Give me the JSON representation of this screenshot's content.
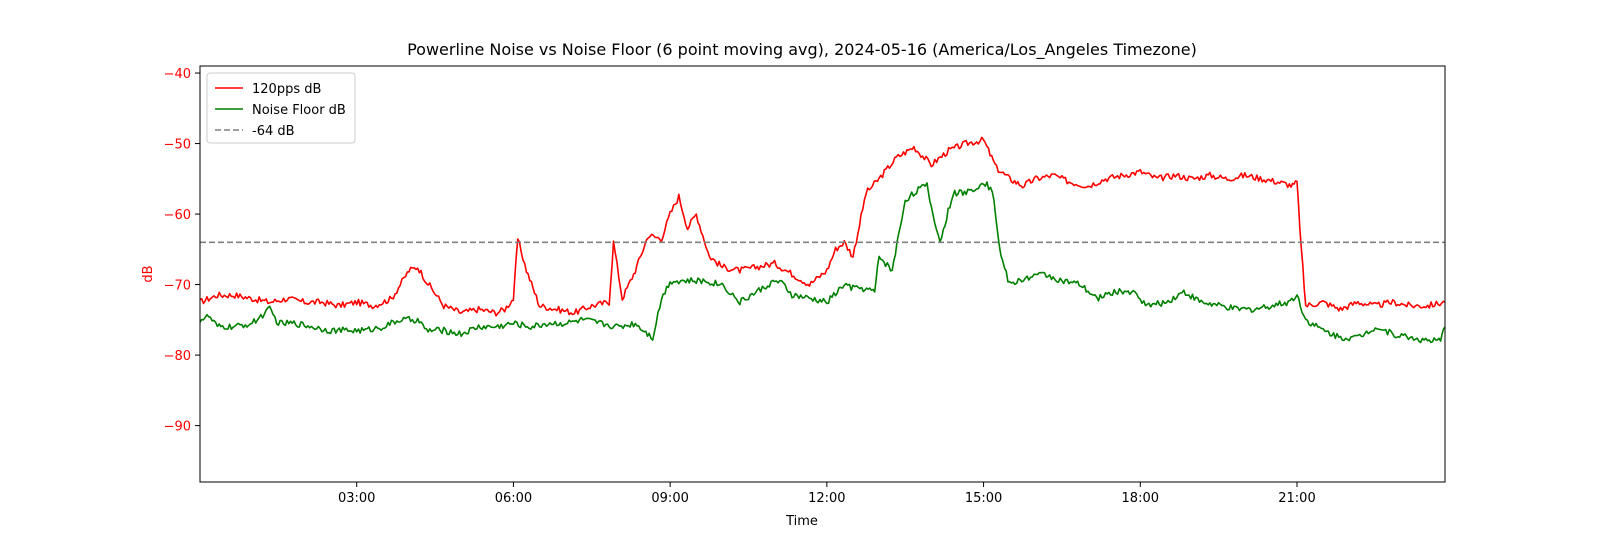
{
  "chart_data": {
    "type": "line",
    "title": "Powerline Noise vs Noise Floor (6 point moving avg), 2024-05-16 (America/Los_Angeles Timezone)",
    "xlabel": "Time",
    "ylabel": "dB",
    "xlim": [
      "00:00",
      "23:50"
    ],
    "ylim": [
      -98,
      -39
    ],
    "x_ticks": [
      "03:00",
      "06:00",
      "09:00",
      "12:00",
      "15:00",
      "18:00",
      "21:00"
    ],
    "y_ticks": [
      -90,
      -80,
      -70,
      -60,
      -50,
      -40
    ],
    "grid": false,
    "legend_position": "top-left",
    "colors": {
      "ylabel": "#ff0000",
      "y_ticks": "#ff0000"
    },
    "series": [
      {
        "name": "120pps dB",
        "color": "#ff0000",
        "style": "solid",
        "x": [
          "00:00",
          "00:20",
          "00:40",
          "01:00",
          "01:20",
          "01:40",
          "02:00",
          "02:20",
          "02:40",
          "03:00",
          "03:20",
          "03:40",
          "04:00",
          "04:10",
          "04:20",
          "04:40",
          "05:00",
          "05:20",
          "05:40",
          "05:50",
          "06:00",
          "06:05",
          "06:15",
          "06:30",
          "06:50",
          "07:10",
          "07:30",
          "07:50",
          "07:55",
          "08:05",
          "08:20",
          "08:35",
          "08:50",
          "09:00",
          "09:10",
          "09:20",
          "09:30",
          "09:45",
          "10:00",
          "10:20",
          "10:40",
          "11:00",
          "11:20",
          "11:40",
          "12:00",
          "12:10",
          "12:20",
          "12:30",
          "12:45",
          "13:00",
          "13:20",
          "13:40",
          "14:00",
          "14:20",
          "14:40",
          "15:00",
          "15:15",
          "15:30",
          "15:45",
          "16:00",
          "16:20",
          "16:40",
          "17:00",
          "17:20",
          "17:40",
          "18:00",
          "18:20",
          "18:40",
          "19:00",
          "19:20",
          "19:40",
          "20:00",
          "20:20",
          "20:40",
          "20:55",
          "21:00",
          "21:05",
          "21:10",
          "21:30",
          "21:50",
          "22:10",
          "22:30",
          "22:50",
          "23:10",
          "23:30",
          "23:50"
        ],
        "y": [
          -72.5,
          -71.5,
          -71.5,
          -72.0,
          -72.5,
          -72.0,
          -72.5,
          -72.5,
          -73.0,
          -72.5,
          -73.0,
          -72.0,
          -68.0,
          -67.5,
          -69.5,
          -73.0,
          -74.0,
          -73.5,
          -74.0,
          -73.5,
          -72.0,
          -63.5,
          -68.0,
          -73.0,
          -73.5,
          -74.0,
          -73.0,
          -72.5,
          -64.0,
          -72.0,
          -68.0,
          -63.0,
          -63.5,
          -60.0,
          -57.5,
          -62.0,
          -60.0,
          -66.0,
          -67.5,
          -68.0,
          -67.5,
          -67.0,
          -68.5,
          -70.0,
          -68.0,
          -65.0,
          -64.0,
          -66.0,
          -57.0,
          -55.0,
          -52.0,
          -50.5,
          -53.0,
          -51.0,
          -50.0,
          -49.5,
          -53.5,
          -55.0,
          -56.0,
          -55.0,
          -54.5,
          -55.5,
          -56.0,
          -55.0,
          -54.5,
          -54.0,
          -55.0,
          -54.5,
          -55.0,
          -54.5,
          -55.0,
          -54.5,
          -55.0,
          -55.5,
          -56.0,
          -55.5,
          -65.0,
          -73.0,
          -72.5,
          -73.5,
          -72.5,
          -73.0,
          -72.5,
          -73.0,
          -73.0,
          -72.5
        ]
      },
      {
        "name": "Noise Floor dB",
        "color": "#008000",
        "style": "solid",
        "x": [
          "00:00",
          "00:10",
          "00:20",
          "00:40",
          "01:00",
          "01:20",
          "01:30",
          "01:50",
          "02:10",
          "02:30",
          "02:50",
          "03:10",
          "03:30",
          "03:50",
          "04:10",
          "04:20",
          "04:40",
          "05:00",
          "05:20",
          "05:40",
          "06:00",
          "06:20",
          "06:40",
          "07:00",
          "07:20",
          "07:40",
          "08:00",
          "08:20",
          "08:40",
          "08:50",
          "09:00",
          "09:20",
          "09:40",
          "10:00",
          "10:20",
          "10:40",
          "11:00",
          "11:10",
          "11:20",
          "11:40",
          "12:00",
          "12:20",
          "12:30",
          "12:40",
          "12:55",
          "13:00",
          "13:15",
          "13:30",
          "13:45",
          "13:55",
          "14:00",
          "14:10",
          "14:25",
          "14:40",
          "15:00",
          "15:10",
          "15:20",
          "15:30",
          "15:50",
          "16:10",
          "16:30",
          "16:50",
          "17:10",
          "17:30",
          "17:50",
          "18:10",
          "18:30",
          "18:50",
          "19:10",
          "19:30",
          "19:50",
          "20:10",
          "20:30",
          "20:50",
          "21:00",
          "21:10",
          "21:30",
          "21:50",
          "22:10",
          "22:30",
          "22:50",
          "23:10",
          "23:30",
          "23:45",
          "23:50"
        ],
        "y": [
          -75.0,
          -74.5,
          -76.0,
          -76.0,
          -75.5,
          -73.5,
          -75.5,
          -75.5,
          -76.0,
          -76.5,
          -76.5,
          -76.5,
          -76.0,
          -75.0,
          -75.0,
          -76.5,
          -76.5,
          -77.0,
          -76.0,
          -76.0,
          -75.5,
          -76.0,
          -75.5,
          -75.5,
          -75.0,
          -75.5,
          -76.0,
          -75.5,
          -77.5,
          -72.0,
          -69.5,
          -69.5,
          -69.5,
          -70.0,
          -72.5,
          -71.0,
          -69.5,
          -70.0,
          -71.5,
          -72.0,
          -72.5,
          -70.0,
          -70.5,
          -70.5,
          -71.0,
          -66.0,
          -68.0,
          -58.0,
          -56.5,
          -56.0,
          -59.0,
          -64.0,
          -57.0,
          -57.0,
          -55.5,
          -56.5,
          -66.0,
          -70.0,
          -69.0,
          -68.5,
          -69.5,
          -70.0,
          -72.0,
          -71.0,
          -71.0,
          -73.0,
          -72.5,
          -71.0,
          -72.5,
          -73.0,
          -73.5,
          -73.5,
          -73.0,
          -72.5,
          -71.5,
          -75.0,
          -76.5,
          -77.5,
          -77.5,
          -76.0,
          -77.0,
          -77.5,
          -78.0,
          -78.0,
          -76.0
        ]
      },
      {
        "name": "-64 dB",
        "color": "#808080",
        "style": "dashed",
        "x": [
          "00:00",
          "23:50"
        ],
        "y": [
          -64,
          -64
        ]
      }
    ]
  }
}
